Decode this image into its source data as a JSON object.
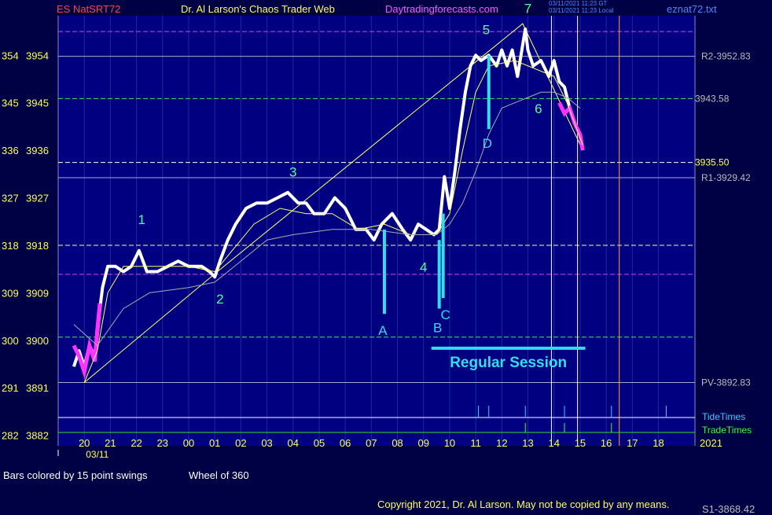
{
  "header": {
    "symbol": "ES NatSRT72",
    "title": "Dr. Al Larson's Chaos Trader Web",
    "website": "Daytradingforecasts.com",
    "file": "eznat72.txt",
    "stamp_line1": "03/11/2021 11:23 GT",
    "stamp_line2": "03/11/2021 11:23 Local"
  },
  "footer": {
    "swing_note": "Bars colored by 15 point swings",
    "wheel_note": "Wheel of 360",
    "copyright": "Copyright 2021, Dr. Al Larson. May not be copied by any means.",
    "cut_label": "S1-3868.42"
  },
  "colors": {
    "background": "#000044",
    "plot_background": "#000080",
    "price_bars": "#ffffff",
    "swing_down_bars": "#ff33ff",
    "pivot_lines": "#ffff66",
    "labels_green": "#55ff99",
    "labels_cyan": "#33ddee"
  },
  "chart_data": {
    "type": "line",
    "title": "ES NatSRT72",
    "ylim": [
      3880,
      3961.5
    ],
    "x_ticks": [
      "20",
      "21",
      "22",
      "23",
      "00",
      "01",
      "02",
      "03",
      "04",
      "05",
      "06",
      "07",
      "08",
      "09",
      "10",
      "11",
      "12",
      "13",
      "14",
      "15",
      "16",
      "17",
      "18"
    ],
    "x_sublabels": [
      "03/11",
      "2021"
    ],
    "y_ticks": [
      {
        "left": "354",
        "price": 3954
      },
      {
        "left": "345",
        "price": 3945
      },
      {
        "left": "336",
        "price": 3936
      },
      {
        "left": "327",
        "price": 3927
      },
      {
        "left": "318",
        "price": 3918
      },
      {
        "left": "309",
        "price": 3909
      },
      {
        "left": "300",
        "price": 3900
      },
      {
        "left": "291",
        "price": 3891
      },
      {
        "left": "282",
        "price": 3882
      }
    ],
    "level_lines": [
      {
        "price": 3958.5,
        "style": "dashed",
        "color": "#cc44ff",
        "label": ""
      },
      {
        "price": 3953.8,
        "style": "solid",
        "color": "#aaaacc",
        "label": "R2-3952.83"
      },
      {
        "price": 3945.8,
        "style": "dashed",
        "color": "#33ee55",
        "label": "3943.58"
      },
      {
        "price": 3933.7,
        "style": "dashed",
        "color": "#ffffff",
        "label": "3935.50"
      },
      {
        "price": 3930.8,
        "style": "solid",
        "color": "#aaaacc",
        "label": "R1-3929.42"
      },
      {
        "price": 3918.0,
        "style": "dashed",
        "color": "#ffff66",
        "label": ""
      },
      {
        "price": 3912.5,
        "style": "dashed",
        "color": "#cc44ff",
        "label": ""
      },
      {
        "price": 3900.6,
        "style": "dashed",
        "color": "#33ee55",
        "label": ""
      },
      {
        "price": 3892.0,
        "style": "solid",
        "color": "#aaaacc",
        "label": "PV-3892.83"
      }
    ],
    "price_series": [
      [
        19.6,
        3895
      ],
      [
        19.8,
        3898
      ],
      [
        20.0,
        3895
      ],
      [
        20.2,
        3899
      ],
      [
        20.4,
        3897
      ],
      [
        20.5,
        3901
      ],
      [
        20.6,
        3906
      ],
      [
        20.7,
        3910
      ],
      [
        20.9,
        3914
      ],
      [
        21.2,
        3914
      ],
      [
        21.5,
        3913
      ],
      [
        21.8,
        3914
      ],
      [
        22.1,
        3917
      ],
      [
        22.4,
        3913
      ],
      [
        22.8,
        3913
      ],
      [
        23.2,
        3914
      ],
      [
        23.6,
        3915
      ],
      [
        24.0,
        3914
      ],
      [
        24.5,
        3914
      ],
      [
        24.8,
        3913
      ],
      [
        25.0,
        3912
      ],
      [
        25.2,
        3915
      ],
      [
        25.5,
        3919
      ],
      [
        25.8,
        3922
      ],
      [
        26.2,
        3925
      ],
      [
        26.6,
        3926
      ],
      [
        27.0,
        3926
      ],
      [
        27.4,
        3927
      ],
      [
        27.8,
        3928
      ],
      [
        28.2,
        3926
      ],
      [
        28.5,
        3926
      ],
      [
        28.8,
        3924
      ],
      [
        29.2,
        3924
      ],
      [
        29.6,
        3927
      ],
      [
        30.0,
        3925
      ],
      [
        30.4,
        3921
      ],
      [
        30.8,
        3921
      ],
      [
        31.1,
        3919
      ],
      [
        31.4,
        3922
      ],
      [
        31.8,
        3924
      ],
      [
        32.2,
        3921
      ],
      [
        32.5,
        3919
      ],
      [
        32.8,
        3922
      ],
      [
        33.1,
        3921
      ],
      [
        33.4,
        3920
      ],
      [
        33.6,
        3921
      ],
      [
        33.8,
        3931
      ],
      [
        34.0,
        3925
      ],
      [
        34.2,
        3932
      ],
      [
        34.4,
        3940
      ],
      [
        34.6,
        3947
      ],
      [
        34.8,
        3952
      ],
      [
        35.0,
        3954
      ],
      [
        35.2,
        3953
      ],
      [
        35.5,
        3954
      ],
      [
        35.8,
        3952
      ],
      [
        36.0,
        3955
      ],
      [
        36.2,
        3952
      ],
      [
        36.4,
        3955
      ],
      [
        36.6,
        3950
      ],
      [
        36.9,
        3959
      ],
      [
        37.0,
        3955
      ],
      [
        37.2,
        3952
      ],
      [
        37.5,
        3953
      ],
      [
        37.8,
        3950
      ],
      [
        38.0,
        3953
      ],
      [
        38.2,
        3949
      ],
      [
        38.4,
        3948
      ],
      [
        38.6,
        3944
      ],
      [
        38.8,
        3941
      ],
      [
        39.0,
        3939
      ],
      [
        39.1,
        3936
      ]
    ],
    "swing_down_series": [
      [
        19.6,
        3899
      ],
      [
        19.8,
        3897
      ],
      [
        20.0,
        3894
      ],
      [
        20.2,
        3899
      ],
      [
        20.4,
        3896
      ],
      [
        20.5,
        3902
      ],
      [
        20.6,
        3907
      ],
      [
        38.2,
        3945
      ],
      [
        38.4,
        3943
      ],
      [
        38.6,
        3944
      ],
      [
        38.8,
        3941
      ],
      [
        39.0,
        3939
      ],
      [
        39.1,
        3936
      ]
    ],
    "fast_ma": [
      [
        20.0,
        3892
      ],
      [
        20.5,
        3898
      ],
      [
        20.9,
        3909
      ],
      [
        21.5,
        3914
      ],
      [
        22.5,
        3914
      ],
      [
        24.0,
        3914
      ],
      [
        25.0,
        3913
      ],
      [
        25.5,
        3916
      ],
      [
        26.5,
        3922
      ],
      [
        27.5,
        3925
      ],
      [
        28.5,
        3924
      ],
      [
        29.5,
        3924
      ],
      [
        30.5,
        3921
      ],
      [
        31.5,
        3922
      ],
      [
        32.5,
        3920
      ],
      [
        33.5,
        3920
      ],
      [
        34.0,
        3924
      ],
      [
        34.5,
        3936
      ],
      [
        35.0,
        3947
      ],
      [
        35.5,
        3952
      ],
      [
        36.5,
        3953
      ],
      [
        37.5,
        3951
      ],
      [
        38.0,
        3950
      ],
      [
        38.5,
        3945
      ],
      [
        39.1,
        3937
      ]
    ],
    "slow_ma": [
      [
        19.6,
        3903
      ],
      [
        20.5,
        3899
      ],
      [
        21.5,
        3906
      ],
      [
        22.5,
        3909
      ],
      [
        24.0,
        3910
      ],
      [
        25.0,
        3911
      ],
      [
        26.0,
        3915
      ],
      [
        27.0,
        3919
      ],
      [
        28.0,
        3920
      ],
      [
        29.5,
        3921
      ],
      [
        31.0,
        3921
      ],
      [
        32.5,
        3920
      ],
      [
        33.5,
        3920
      ],
      [
        34.0,
        3922
      ],
      [
        34.5,
        3926
      ],
      [
        35.0,
        3932
      ],
      [
        35.5,
        3939
      ],
      [
        36.0,
        3944
      ],
      [
        36.5,
        3945
      ],
      [
        37.0,
        3946
      ],
      [
        37.5,
        3947
      ],
      [
        38.0,
        3947
      ],
      [
        38.5,
        3946
      ],
      [
        39.0,
        3944
      ]
    ],
    "pivot_line": [
      [
        20.0,
        3892
      ],
      [
        25.1,
        3913
      ],
      [
        36.8,
        3960
      ],
      [
        39.1,
        3936
      ]
    ],
    "swing_labels": [
      {
        "label": "1",
        "x": 22.2,
        "price": 3922
      },
      {
        "label": "2",
        "x": 25.2,
        "price": 3907
      },
      {
        "label": "3",
        "x": 28.0,
        "price": 3931
      },
      {
        "label": "4",
        "x": 33.0,
        "price": 3913
      },
      {
        "label": "5",
        "x": 35.4,
        "price": 3958
      },
      {
        "label": "6",
        "x": 37.4,
        "price": 3943
      },
      {
        "label": "7",
        "x": 37.0,
        "price": 3962
      }
    ],
    "event_bars": [
      {
        "label": "A",
        "x": 31.5,
        "top": 3921,
        "bottom": 3905,
        "label_price": 3901
      },
      {
        "label": "B",
        "x": 33.6,
        "top": 3919,
        "bottom": 3906,
        "label_price": 3901.5
      },
      {
        "label": "C",
        "x": 33.75,
        "top": 3924,
        "bottom": 3908,
        "label_price": 3904
      },
      {
        "label": "D",
        "x": 35.5,
        "top": 3954,
        "bottom": 3940,
        "label_price": 3936.5
      }
    ],
    "session": {
      "label": "Regular Session",
      "x_start": 33.3,
      "x_end": 39.2,
      "price": 3898.5
    },
    "tide_times": [
      35.1,
      35.5,
      36.9,
      38.4,
      40.2,
      42.3
    ],
    "trade_times": [
      36.9,
      38.4,
      40.2
    ],
    "tide_label": "TideTimes",
    "trade_label": "TradeTimes",
    "vertical_markers": [
      {
        "x": 37.9,
        "color": "#ffffff"
      },
      {
        "x": 38.9,
        "color": "#ffffff"
      },
      {
        "x": 40.5,
        "color": "#ffaa33"
      }
    ]
  }
}
